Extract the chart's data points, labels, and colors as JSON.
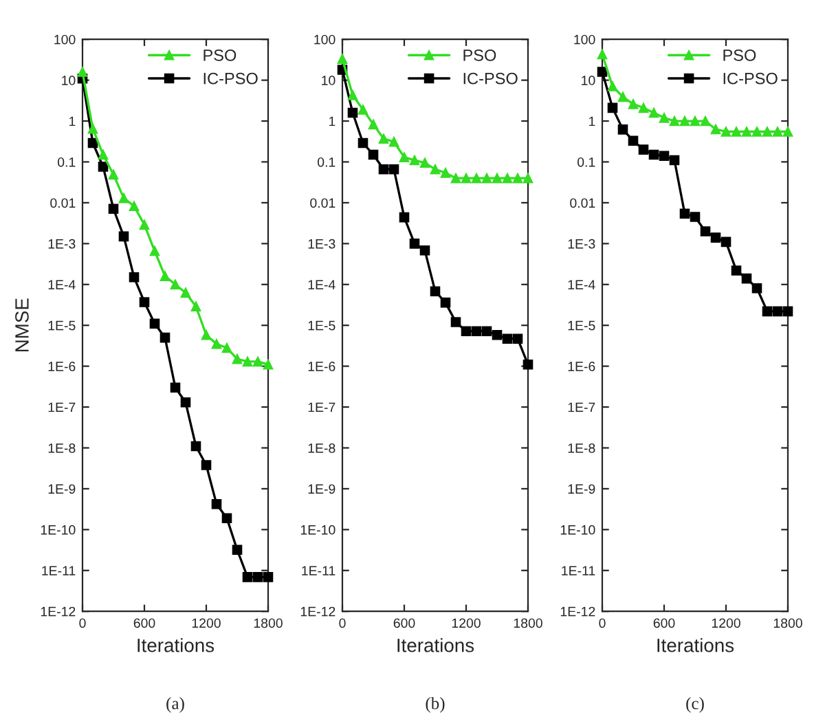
{
  "chart_data": [
    {
      "type": "line",
      "xlabel": "Iterations",
      "ylabel": "NMSE",
      "log": "y",
      "legend": "top right",
      "grid": false,
      "annotations": [
        "(a)"
      ],
      "xlim": [
        0,
        1800
      ],
      "xticks": [
        0,
        600,
        1200,
        1800
      ],
      "ylim": [
        1e-12,
        100
      ],
      "yticks": [
        100,
        10,
        1,
        0.1,
        0.01,
        {
          "value": 0.001,
          "label": "1E-3"
        },
        {
          "value": 0.0001,
          "label": "1E-4"
        },
        {
          "value": 1e-05,
          "label": "1E-5"
        },
        {
          "value": 1e-06,
          "label": "1E-6"
        },
        {
          "value": 1e-07,
          "label": "1E-7"
        },
        {
          "value": 1e-08,
          "label": "1E-8"
        },
        {
          "value": 1e-09,
          "label": "1E-9"
        },
        {
          "value": 1e-10,
          "label": "1E-10"
        },
        {
          "value": 1e-11,
          "label": "1E-11"
        },
        {
          "value": 1e-12,
          "label": "1E-12"
        }
      ],
      "x": [
        0,
        100,
        200,
        300,
        400,
        500,
        600,
        700,
        800,
        900,
        1000,
        1100,
        1200,
        1300,
        1400,
        1500,
        1600,
        1700,
        1800
      ],
      "series": [
        {
          "name": "PSO",
          "color": "#33dd22",
          "marker": "triangle",
          "values": [
            16,
            0.65,
            0.15,
            0.049,
            0.013,
            0.0083,
            0.0029,
            0.00066,
            0.00016,
            0.0001,
            6.3e-05,
            2.9e-05,
            5.8e-06,
            3.5e-06,
            2.8e-06,
            1.5e-06,
            1.3e-06,
            1.3e-06,
            1.1e-06
          ]
        },
        {
          "name": "IC-PSO",
          "color": "#000000",
          "marker": "square",
          "values": [
            11,
            0.29,
            0.076,
            0.0071,
            0.0015,
            0.00015,
            3.7e-05,
            1.1e-05,
            5e-06,
            3e-07,
            1.3e-07,
            1.1e-08,
            3.8e-09,
            4.2e-10,
            1.9e-10,
            3.2e-11,
            6.9e-12,
            6.9e-12,
            6.9e-12
          ]
        }
      ]
    },
    {
      "type": "line",
      "xlabel": "Iterations",
      "log": "y",
      "legend": "top right",
      "grid": false,
      "annotations": [
        "(b)"
      ],
      "xlim": [
        0,
        1800
      ],
      "xticks": [
        0,
        600,
        1200,
        1800
      ],
      "ylim": [
        1e-12,
        100
      ],
      "yticks": [
        100,
        10,
        1,
        0.1,
        0.01,
        {
          "value": 0.001,
          "label": "1E-3"
        },
        {
          "value": 0.0001,
          "label": "1E-4"
        },
        {
          "value": 1e-05,
          "label": "1E-5"
        },
        {
          "value": 1e-06,
          "label": "1E-6"
        },
        {
          "value": 1e-07,
          "label": "1E-7"
        },
        {
          "value": 1e-08,
          "label": "1E-8"
        },
        {
          "value": 1e-09,
          "label": "1E-9"
        },
        {
          "value": 1e-10,
          "label": "1E-10"
        },
        {
          "value": 1e-11,
          "label": "1E-11"
        },
        {
          "value": 1e-12,
          "label": "1E-12"
        }
      ],
      "x": [
        0,
        100,
        200,
        300,
        400,
        500,
        600,
        700,
        800,
        900,
        1000,
        1100,
        1200,
        1300,
        1400,
        1500,
        1600,
        1700,
        1800
      ],
      "series": [
        {
          "name": "PSO",
          "color": "#33dd22",
          "marker": "triangle",
          "values": [
            33,
            4.3,
            1.9,
            0.83,
            0.37,
            0.31,
            0.13,
            0.11,
            0.095,
            0.066,
            0.054,
            0.04,
            0.04,
            0.04,
            0.04,
            0.04,
            0.04,
            0.04,
            0.04
          ]
        },
        {
          "name": "IC-PSO",
          "color": "#000000",
          "marker": "square",
          "values": [
            18,
            1.6,
            0.29,
            0.15,
            0.066,
            0.066,
            0.0044,
            0.001,
            0.00068,
            6.8e-05,
            3.6e-05,
            1.2e-05,
            7.2e-06,
            7.2e-06,
            7.2e-06,
            5.8e-06,
            4.7e-06,
            4.7e-06,
            1.1e-06
          ]
        }
      ]
    },
    {
      "type": "line",
      "xlabel": "Iterations",
      "log": "y",
      "legend": "top right",
      "grid": false,
      "annotations": [
        "(c)"
      ],
      "xlim": [
        0,
        1800
      ],
      "xticks": [
        0,
        600,
        1200,
        1800
      ],
      "ylim": [
        1e-12,
        100
      ],
      "yticks": [
        100,
        10,
        1,
        0.1,
        0.01,
        {
          "value": 0.001,
          "label": "1E-3"
        },
        {
          "value": 0.0001,
          "label": "1E-4"
        },
        {
          "value": 1e-05,
          "label": "1E-5"
        },
        {
          "value": 1e-06,
          "label": "1E-6"
        },
        {
          "value": 1e-07,
          "label": "1E-7"
        },
        {
          "value": 1e-08,
          "label": "1E-8"
        },
        {
          "value": 1e-09,
          "label": "1E-9"
        },
        {
          "value": 1e-10,
          "label": "1E-10"
        },
        {
          "value": 1e-11,
          "label": "1E-11"
        },
        {
          "value": 1e-12,
          "label": "1E-12"
        }
      ],
      "x": [
        0,
        100,
        200,
        300,
        400,
        500,
        600,
        700,
        800,
        900,
        1000,
        1100,
        1200,
        1300,
        1400,
        1500,
        1600,
        1700,
        1800
      ],
      "series": [
        {
          "name": "PSO",
          "color": "#33dd22",
          "marker": "triangle",
          "values": [
            43,
            7.1,
            3.9,
            2.6,
            2.1,
            1.6,
            1.2,
            1.0,
            1.0,
            1.0,
            1.0,
            0.63,
            0.55,
            0.55,
            0.55,
            0.55,
            0.55,
            0.55,
            0.55
          ]
        },
        {
          "name": "IC-PSO",
          "color": "#000000",
          "marker": "square",
          "values": [
            16,
            2.1,
            0.62,
            0.33,
            0.2,
            0.15,
            0.14,
            0.11,
            0.0054,
            0.0045,
            0.002,
            0.0014,
            0.0011,
            0.00022,
            0.00014,
            8.1e-05,
            2.2e-05,
            2.2e-05,
            2.2e-05
          ]
        }
      ]
    }
  ]
}
